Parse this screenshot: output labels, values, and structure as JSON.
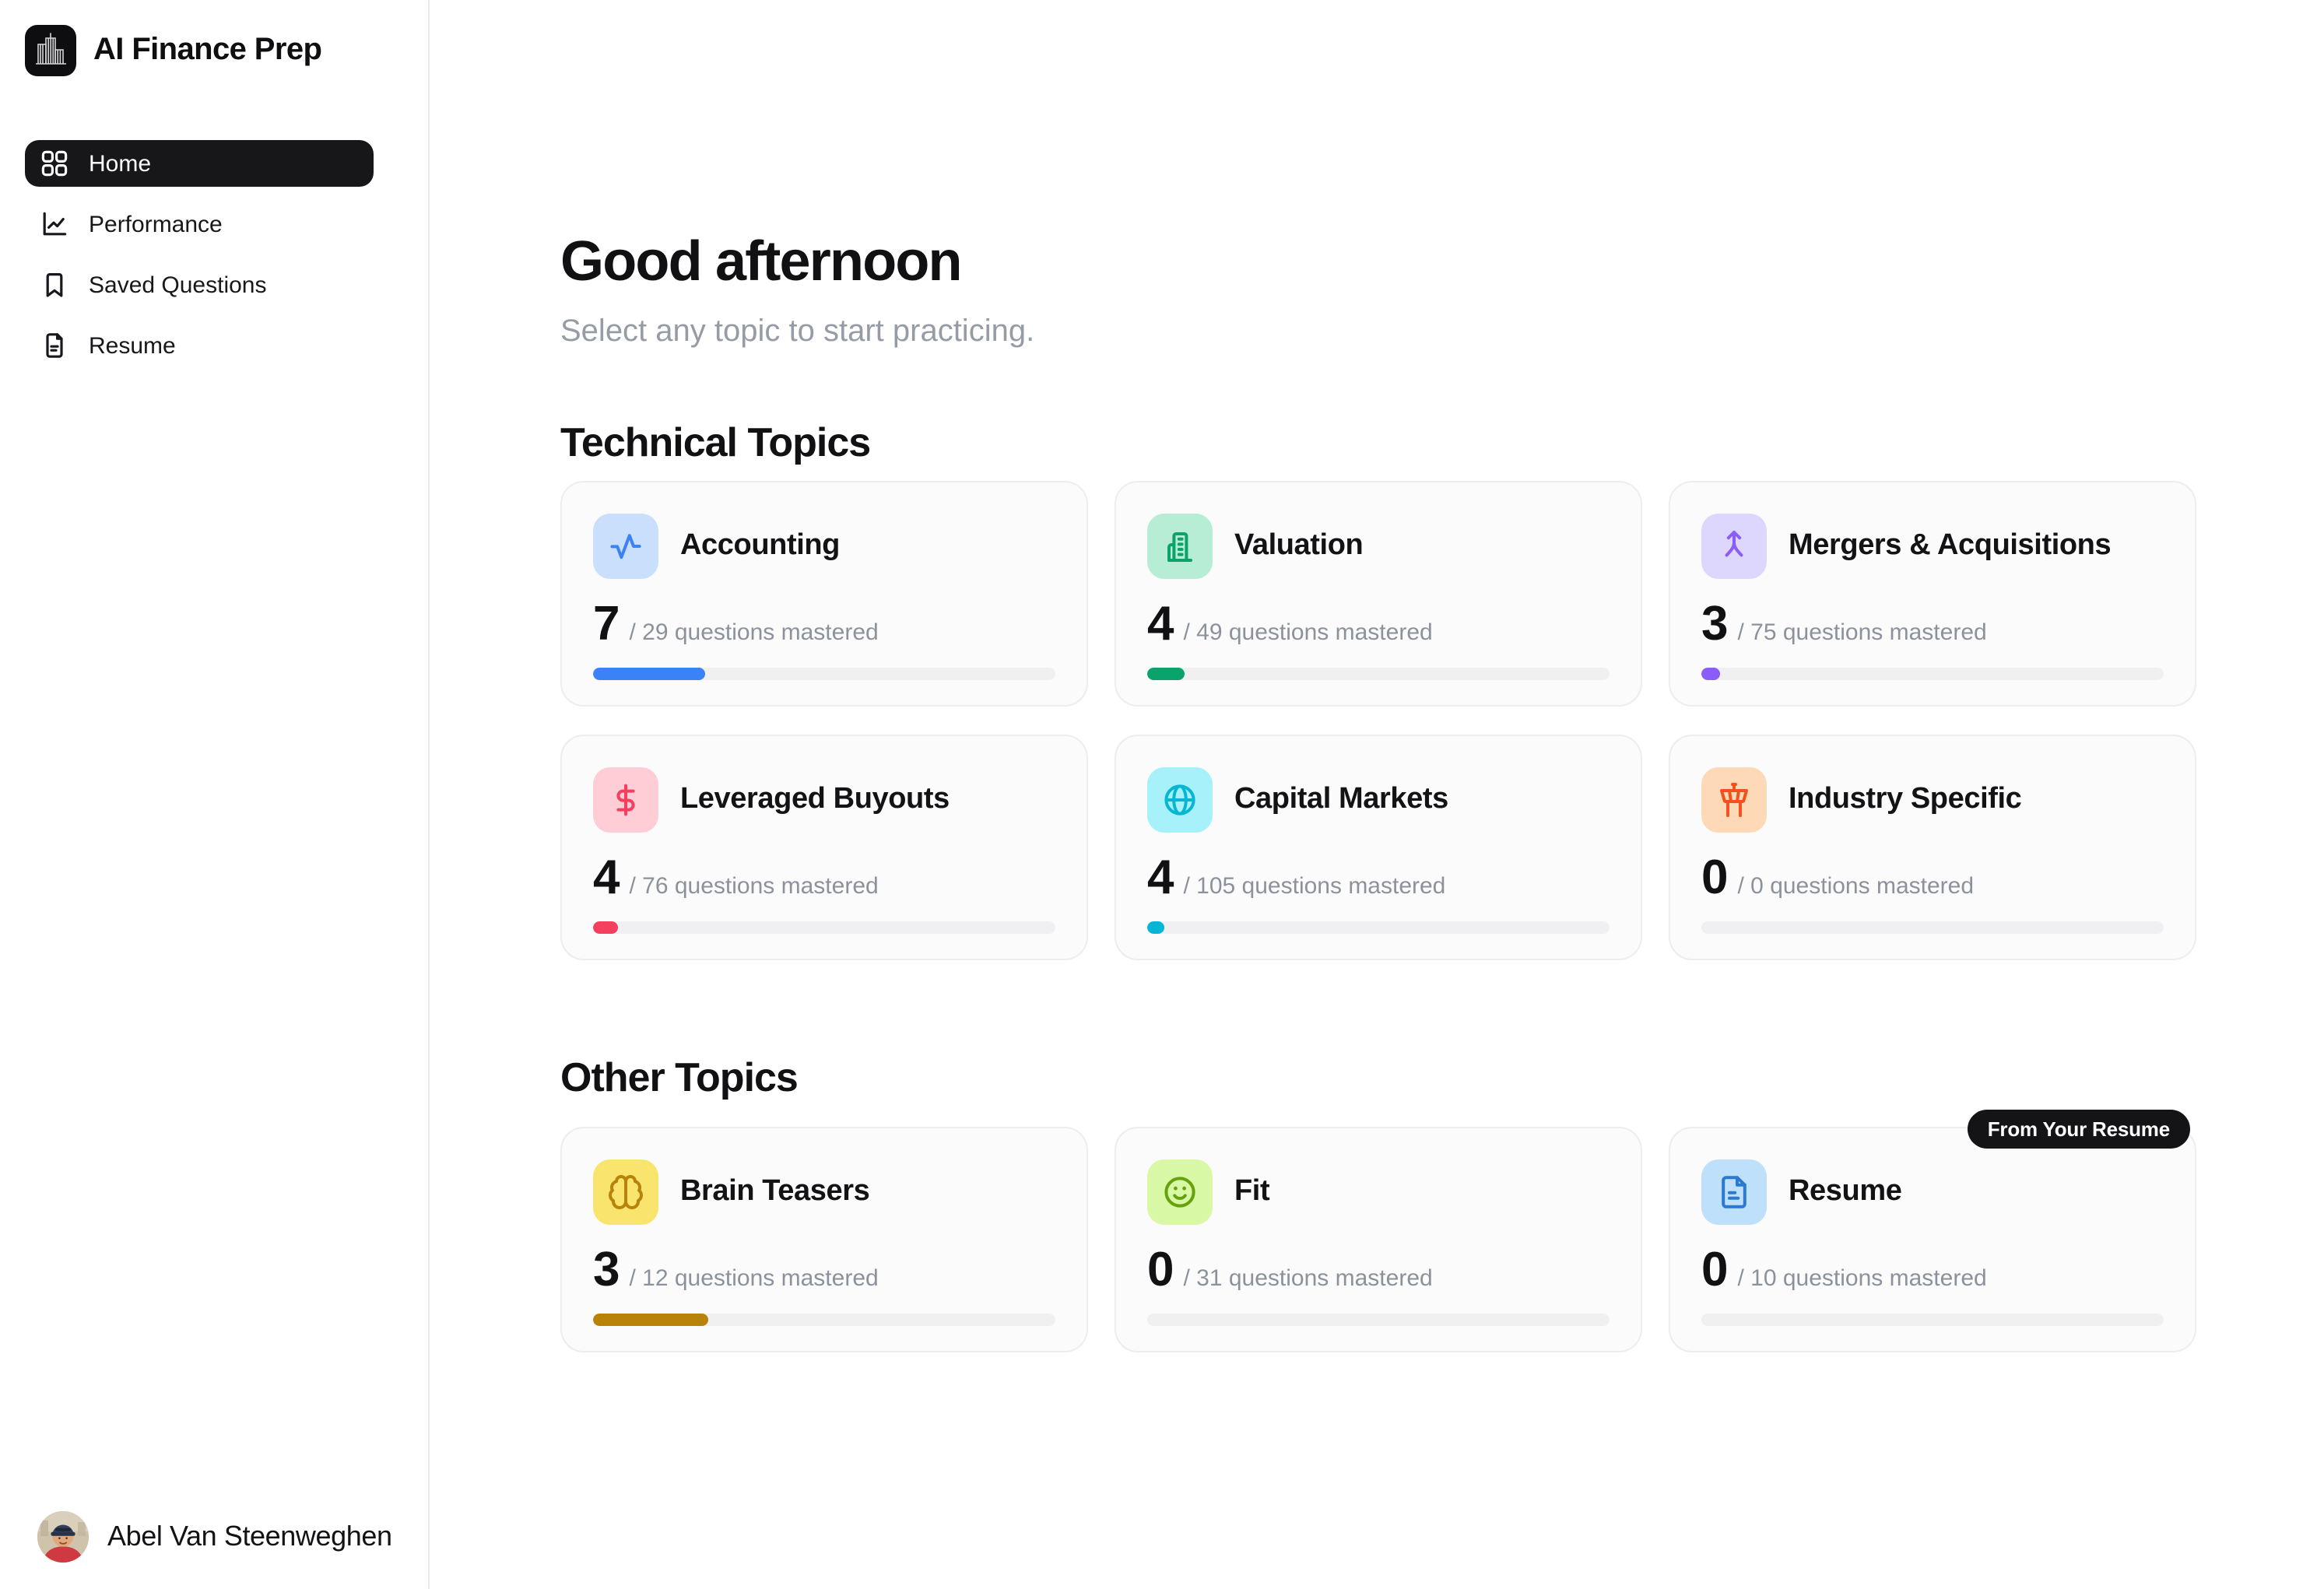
{
  "app": {
    "title": "AI Finance Prep"
  },
  "sidebar": {
    "nav": [
      {
        "label": "Home",
        "icon": "grid-icon",
        "active": true
      },
      {
        "label": "Performance",
        "icon": "chart-line-icon",
        "active": false
      },
      {
        "label": "Saved Questions",
        "icon": "bookmark-icon",
        "active": false
      },
      {
        "label": "Resume",
        "icon": "file-icon",
        "active": false
      }
    ],
    "user": {
      "name": "Abel Van Steenweghen"
    }
  },
  "header": {
    "greeting": "Good afternoon",
    "subtitle": "Select any topic to start practicing."
  },
  "sections": [
    {
      "title": "Technical Topics",
      "topics": [
        {
          "name": "Accounting",
          "mastered": 7,
          "total": 29,
          "fraction_label": "/ 29 questions mastered",
          "icon": "activity-icon",
          "accent": "#3b82f6",
          "icon_bg": "#c9dffb"
        },
        {
          "name": "Valuation",
          "mastered": 4,
          "total": 49,
          "fraction_label": "/ 49 questions mastered",
          "icon": "building-icon",
          "accent": "#0ba36c",
          "icon_bg": "#b6edd4"
        },
        {
          "name": "Mergers & Acquisitions",
          "mastered": 3,
          "total": 75,
          "fraction_label": "/ 75 questions mastered",
          "icon": "merge-arrow-icon",
          "accent": "#8b5cf6",
          "icon_bg": "#ddd7fd"
        },
        {
          "name": "Leveraged Buyouts",
          "mastered": 4,
          "total": 76,
          "fraction_label": "/ 76 questions mastered",
          "icon": "dollar-icon",
          "accent": "#f43f5e",
          "icon_bg": "#fecdd6"
        },
        {
          "name": "Capital Markets",
          "mastered": 4,
          "total": 105,
          "fraction_label": "/ 105 questions mastered",
          "icon": "globe-icon",
          "accent": "#06b6d4",
          "icon_bg": "#a7f1fb"
        },
        {
          "name": "Industry Specific",
          "mastered": 0,
          "total": 0,
          "fraction_label": "/ 0 questions mastered",
          "icon": "control-tower-icon",
          "accent": "#f4511e",
          "icon_bg": "#fdd9b8"
        }
      ]
    },
    {
      "title": "Other Topics",
      "topics": [
        {
          "name": "Brain Teasers",
          "mastered": 3,
          "total": 12,
          "fraction_label": "/ 12 questions mastered",
          "icon": "brain-icon",
          "accent": "#b8820b",
          "icon_bg": "#f9e56d"
        },
        {
          "name": "Fit",
          "mastered": 0,
          "total": 31,
          "fraction_label": "/ 31 questions mastered",
          "icon": "smiley-icon",
          "accent": "#65a30d",
          "icon_bg": "#d9f8a6"
        },
        {
          "name": "Resume",
          "mastered": 0,
          "total": 10,
          "fraction_label": "/ 10 questions mastered",
          "icon": "file-text-icon",
          "accent": "#2b7ad0",
          "icon_bg": "#bfe0fa"
        }
      ]
    }
  ],
  "badge": {
    "label": "From Your Resume"
  }
}
